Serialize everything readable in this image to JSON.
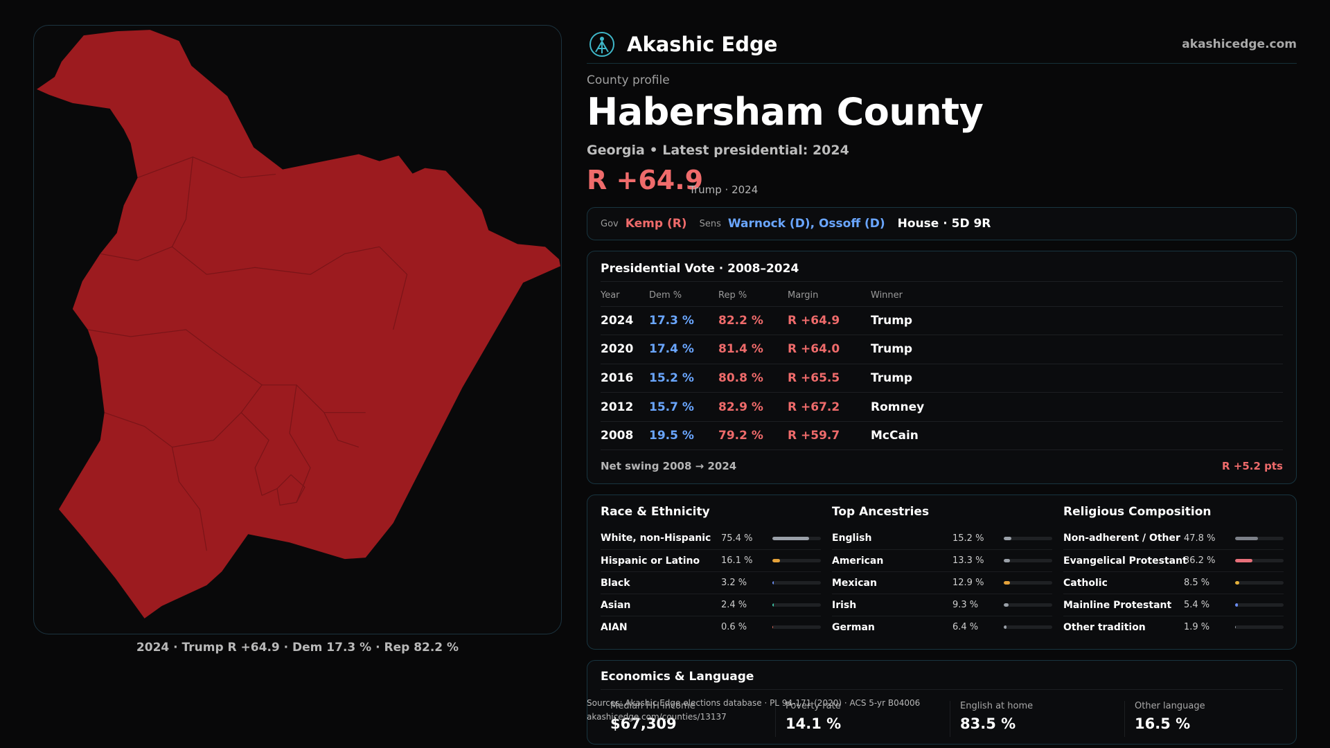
{
  "brand": {
    "name": "Akashic Edge",
    "site": "akashicedge.com"
  },
  "profile": {
    "eyebrow": "County profile",
    "county": "Habersham County",
    "subtitle": "Georgia • Latest presidential: 2024",
    "margin": "R +64.9",
    "margin_note": "Trump · 2024"
  },
  "officials": {
    "gov_label": "Gov",
    "gov": "Kemp (R)",
    "sens_label": "Sens",
    "sens": "Warnock (D), Ossoff (D)",
    "house": "House · 5D 9R"
  },
  "presidential": {
    "title": "Presidential Vote · 2008–2024",
    "headers": [
      "Year",
      "Dem %",
      "Rep %",
      "Margin",
      "Winner"
    ],
    "rows": [
      {
        "year": "2024",
        "dem": "17.3 %",
        "rep": "82.2 %",
        "margin": "R +64.9",
        "winner": "Trump"
      },
      {
        "year": "2020",
        "dem": "17.4 %",
        "rep": "81.4 %",
        "margin": "R +64.0",
        "winner": "Trump"
      },
      {
        "year": "2016",
        "dem": "15.2 %",
        "rep": "80.8 %",
        "margin": "R +65.5",
        "winner": "Trump"
      },
      {
        "year": "2012",
        "dem": "15.7 %",
        "rep": "82.9 %",
        "margin": "R +67.2",
        "winner": "Romney"
      },
      {
        "year": "2008",
        "dem": "19.5 %",
        "rep": "79.2 %",
        "margin": "R +59.7",
        "winner": "McCain"
      }
    ],
    "swing_label": "Net swing 2008 → 2024",
    "swing_value": "R +5.2 pts"
  },
  "race": {
    "title": "Race & Ethnicity",
    "items": [
      {
        "label": "White, non-Hispanic",
        "value": "75.4 %",
        "pct": 75.4,
        "color": "#9aa0a8"
      },
      {
        "label": "Hispanic or Latino",
        "value": "16.1 %",
        "pct": 16.1,
        "color": "#e5a23a"
      },
      {
        "label": "Black",
        "value": "3.2 %",
        "pct": 3.2,
        "color": "#6a8cf0"
      },
      {
        "label": "Asian",
        "value": "2.4 %",
        "pct": 2.4,
        "color": "#3cc2a3"
      },
      {
        "label": "AIAN",
        "value": "0.6 %",
        "pct": 0.6,
        "color": "#e06a5a"
      }
    ]
  },
  "ancestry": {
    "title": "Top Ancestries",
    "items": [
      {
        "label": "English",
        "value": "15.2 %",
        "pct": 15.2,
        "color": "#9aa0a8"
      },
      {
        "label": "American",
        "value": "13.3 %",
        "pct": 13.3,
        "color": "#9aa0a8"
      },
      {
        "label": "Mexican",
        "value": "12.9 %",
        "pct": 12.9,
        "color": "#e5a23a"
      },
      {
        "label": "Irish",
        "value": "9.3 %",
        "pct": 9.3,
        "color": "#9aa0a8"
      },
      {
        "label": "German",
        "value": "6.4 %",
        "pct": 6.4,
        "color": "#9aa0a8"
      }
    ]
  },
  "religion": {
    "title": "Religious Composition",
    "items": [
      {
        "label": "Non-adherent / Other",
        "value": "47.8 %",
        "pct": 47.8,
        "color": "#7c8088"
      },
      {
        "label": "Evangelical Protestant",
        "value": "36.2 %",
        "pct": 36.2,
        "color": "#e8707a"
      },
      {
        "label": "Catholic",
        "value": "8.5 %",
        "pct": 8.5,
        "color": "#e5b13a"
      },
      {
        "label": "Mainline Protestant",
        "value": "5.4 %",
        "pct": 5.4,
        "color": "#6a8cf0"
      },
      {
        "label": "Other tradition",
        "value": "1.9 %",
        "pct": 1.9,
        "color": "#9aa0a8"
      }
    ]
  },
  "economics": {
    "title": "Economics & Language",
    "items": [
      {
        "label": "Median HH income",
        "value": "$67,309"
      },
      {
        "label": "Poverty rate",
        "value": "14.1 %"
      },
      {
        "label": "English at home",
        "value": "83.5 %"
      },
      {
        "label": "Other language",
        "value": "16.5 %"
      }
    ]
  },
  "sources": {
    "line1": "Sources: Akashic Edge elections database · PL 94-171 (2020) · ACS 5-yr B04006",
    "line2": "akashicedge.com/counties/13137"
  },
  "map": {
    "caption": "2024 · Trump R +64.9 · Dem 17.3 % · Rep 82.2 %",
    "fill": "#9c1b1f"
  }
}
